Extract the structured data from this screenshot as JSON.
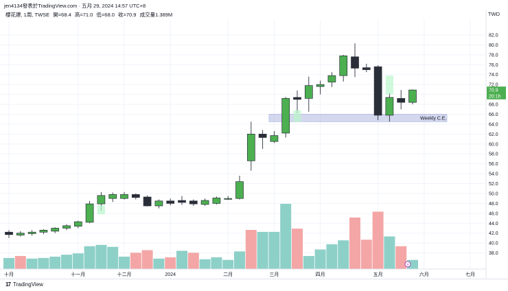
{
  "header": {
    "author_line": "jen4134發表於TradingView.com · 五月 29, 2024 14:57 UTC+8",
    "symbol_line": "櫻花建, 1周, TWSE",
    "open": "開=68.4",
    "high": "高=71.0",
    "low": "低=68.0",
    "close": "收=70.9",
    "volume": "成交量1.389M",
    "currency": "TWD"
  },
  "footer": {
    "logo_text": "TradingView"
  },
  "colors": {
    "up": "#4caf50",
    "down": "#2a2e39",
    "vol_up": "#8dd0c8",
    "vol_down": "#f4a6a6",
    "zone": "#9fa8da",
    "grid": "#f0f3fa"
  },
  "chart_data": {
    "type": "candlestick",
    "ylim": [
      36.0,
      82.0
    ],
    "y_ticks": [
      "38.0",
      "40.0",
      "42.0",
      "44.0",
      "46.0",
      "48.0",
      "50.0",
      "52.0",
      "54.0",
      "56.0",
      "58.0",
      "60.0",
      "62.0",
      "64.0",
      "66.0",
      "68.0",
      "70.0",
      "72.0",
      "74.0",
      "76.0",
      "78.0",
      "80.0",
      "82.0"
    ],
    "x_ticks": [
      {
        "label": "十月",
        "index": 0
      },
      {
        "label": "十一月",
        "index": 6
      },
      {
        "label": "十二月",
        "index": 10
      },
      {
        "label": "2024",
        "index": 14
      },
      {
        "label": "二月",
        "index": 19
      },
      {
        "label": "三月",
        "index": 23
      },
      {
        "label": "四月",
        "index": 27
      },
      {
        "label": "五月",
        "index": 32
      },
      {
        "label": "六月",
        "index": 36
      },
      {
        "label": "七月",
        "index": 40
      }
    ],
    "candles": [
      {
        "o": 42.2,
        "h": 42.6,
        "l": 41.0,
        "c": 41.7
      },
      {
        "o": 41.6,
        "h": 42.4,
        "l": 41.3,
        "c": 42.0
      },
      {
        "o": 41.9,
        "h": 42.6,
        "l": 41.5,
        "c": 42.2
      },
      {
        "o": 42.2,
        "h": 42.8,
        "l": 41.8,
        "c": 42.6
      },
      {
        "o": 42.4,
        "h": 43.2,
        "l": 42.0,
        "c": 43.0
      },
      {
        "o": 43.0,
        "h": 43.8,
        "l": 42.6,
        "c": 43.5
      },
      {
        "o": 43.4,
        "h": 44.5,
        "l": 43.0,
        "c": 44.3
      },
      {
        "o": 44.2,
        "h": 48.5,
        "l": 44.0,
        "c": 47.9
      },
      {
        "o": 47.9,
        "h": 50.3,
        "l": 46.5,
        "c": 49.6
      },
      {
        "o": 49.0,
        "h": 50.2,
        "l": 48.3,
        "c": 49.8
      },
      {
        "o": 49.0,
        "h": 50.3,
        "l": 48.8,
        "c": 49.8
      },
      {
        "o": 49.8,
        "h": 50.0,
        "l": 48.8,
        "c": 49.2
      },
      {
        "o": 49.3,
        "h": 49.6,
        "l": 47.4,
        "c": 47.5
      },
      {
        "o": 47.5,
        "h": 48.8,
        "l": 47.0,
        "c": 48.5
      },
      {
        "o": 48.5,
        "h": 49.0,
        "l": 47.6,
        "c": 48.0
      },
      {
        "o": 48.6,
        "h": 49.5,
        "l": 47.7,
        "c": 48.2
      },
      {
        "o": 48.5,
        "h": 48.8,
        "l": 47.5,
        "c": 47.9
      },
      {
        "o": 47.8,
        "h": 49.0,
        "l": 47.5,
        "c": 48.6
      },
      {
        "o": 48.0,
        "h": 49.4,
        "l": 47.8,
        "c": 49.1
      },
      {
        "o": 49.0,
        "h": 49.5,
        "l": 48.7,
        "c": 49.0
      },
      {
        "o": 49.0,
        "h": 53.6,
        "l": 48.8,
        "c": 52.4
      },
      {
        "o": 56.6,
        "h": 64.5,
        "l": 54.6,
        "c": 62.0
      },
      {
        "o": 62.0,
        "h": 62.8,
        "l": 59.0,
        "c": 61.3
      },
      {
        "o": 60.5,
        "h": 62.6,
        "l": 60.2,
        "c": 61.7
      },
      {
        "o": 62.2,
        "h": 69.5,
        "l": 61.3,
        "c": 69.2
      },
      {
        "o": 69.4,
        "h": 70.8,
        "l": 66.2,
        "c": 69.0
      },
      {
        "o": 69.2,
        "h": 73.6,
        "l": 66.5,
        "c": 71.8
      },
      {
        "o": 71.6,
        "h": 72.8,
        "l": 70.0,
        "c": 72.0
      },
      {
        "o": 72.5,
        "h": 74.5,
        "l": 71.5,
        "c": 73.8
      },
      {
        "o": 73.8,
        "h": 78.0,
        "l": 72.6,
        "c": 77.8
      },
      {
        "o": 77.6,
        "h": 80.3,
        "l": 73.5,
        "c": 75.3
      },
      {
        "o": 75.4,
        "h": 76.2,
        "l": 74.5,
        "c": 75.0
      },
      {
        "o": 75.6,
        "h": 75.9,
        "l": 64.8,
        "c": 65.8
      },
      {
        "o": 65.8,
        "h": 70.3,
        "l": 64.5,
        "c": 69.4
      },
      {
        "o": 69.2,
        "h": 70.9,
        "l": 67.0,
        "c": 68.4
      },
      {
        "o": 68.4,
        "h": 71.0,
        "l": 68.0,
        "c": 70.9
      }
    ],
    "volume_up_flags": [
      1,
      0,
      1,
      1,
      1,
      1,
      1,
      1,
      1,
      1,
      1,
      0,
      0,
      1,
      0,
      1,
      0,
      1,
      1,
      1,
      1,
      0,
      1,
      1,
      1,
      0,
      1,
      1,
      1,
      1,
      0,
      0,
      0,
      1,
      0,
      1
    ],
    "volume_m": [
      1.7,
      2.0,
      1.6,
      1.7,
      1.9,
      2.2,
      2.4,
      3.5,
      3.7,
      3.4,
      1.9,
      2.5,
      2.9,
      1.6,
      1.8,
      2.8,
      2.5,
      1.5,
      1.8,
      1.4,
      2.7,
      6.0,
      5.7,
      5.7,
      10.0,
      6.2,
      2.0,
      3.0,
      3.8,
      4.4,
      7.9,
      4.5,
      8.8,
      5.0,
      3.5,
      1.4
    ],
    "volume_max_m": 10.0,
    "price_labels": [
      {
        "text": "70.9",
        "value": 70.9
      },
      {
        "text": "20:1h",
        "value": 69.7
      }
    ],
    "zone": {
      "label": "Weekly C.E.",
      "top": 66.0,
      "bottom": 64.5,
      "start_index": 23
    },
    "zone_highlight": {
      "start_index": 23,
      "end_index": 25
    }
  }
}
